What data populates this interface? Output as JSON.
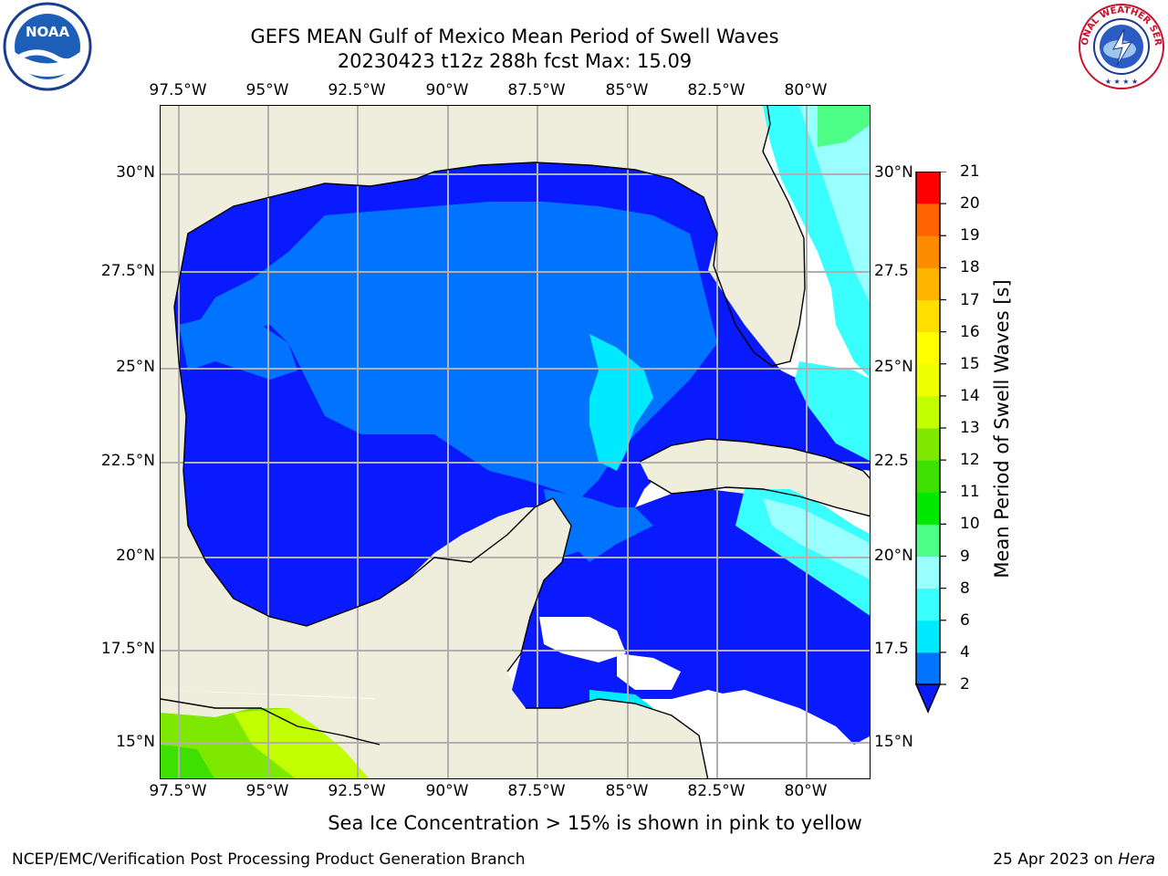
{
  "header": {
    "title_line1": "GEFS MEAN Gulf of Mexico Mean Period of Swell Waves",
    "title_line2": "20230423 t12z 288h fcst   Max: 15.09"
  },
  "map": {
    "lon_labels": [
      "97.5°W",
      "95°W",
      "92.5°W",
      "90°W",
      "87.5°W",
      "85°W",
      "82.5°W",
      "80°W"
    ],
    "lat_labels_left": [
      "30°N",
      "27.5°N",
      "25°N",
      "22.5°N",
      "20°N",
      "17.5°N",
      "15°N"
    ],
    "lat_labels_right": [
      "30°N",
      "27.5",
      "25°N",
      "22.5",
      "20°N",
      "17.5",
      "15°N"
    ],
    "land_color": "#efeedd",
    "grid_color": "#b0b0b0"
  },
  "colorbar": {
    "title": "Mean Period of Swell Waves [s]",
    "ticks": [
      "2",
      "4",
      "6",
      "8",
      "9",
      "10",
      "11",
      "12",
      "13",
      "14",
      "15",
      "16",
      "17",
      "18",
      "19",
      "20",
      "21"
    ],
    "colors": [
      "#0073ff",
      "#00eaff",
      "#39ffff",
      "#99ffff",
      "#4dff87",
      "#00e800",
      "#3de000",
      "#7ee800",
      "#c2ff00",
      "#eeff00",
      "#ffff00",
      "#ffde00",
      "#ffb400",
      "#ff8c00",
      "#ff6400",
      "#ff3c00",
      "#ff0000"
    ],
    "under_color": "#0a1aff"
  },
  "footer": {
    "note": "Sea Ice Concentration > 15% is shown in pink to yellow",
    "left": "NCEP/EMC/Verification Post Processing Product Generation Branch",
    "right_date": "25 Apr 2023 on ",
    "right_host": "Hera"
  },
  "logos": {
    "noaa_text": "NOAA",
    "nws_text": "NATIONAL WEATHER SERVICE"
  }
}
